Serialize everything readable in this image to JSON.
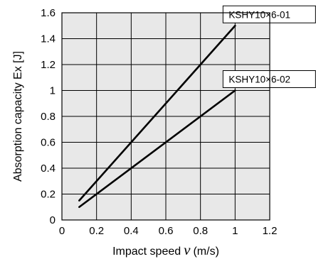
{
  "chart_data": {
    "type": "line",
    "xlabel": "Impact speed",
    "xlabel_symbol": "v",
    "xlabel_unit": "(m/s)",
    "ylabel": "Absorption capacity Ex [J]",
    "xlim": [
      0,
      1.2
    ],
    "ylim": [
      0,
      1.6
    ],
    "x_ticks": [
      "0",
      "0.2",
      "0.4",
      "0.6",
      "0.8",
      "1",
      "1.2"
    ],
    "y_ticks": [
      "0",
      "0.2",
      "0.4",
      "0.6",
      "0.8",
      "1",
      "1.2",
      "1.4",
      "1.6"
    ],
    "grid": true,
    "plot_background": "#e8e8e8",
    "line_color": "#000000",
    "series": [
      {
        "name": "KSHY10×6-01",
        "x": [
          0.1,
          1.0
        ],
        "y": [
          0.15,
          1.5
        ]
      },
      {
        "name": "KSHY10×6-02",
        "x": [
          0.1,
          1.0
        ],
        "y": [
          0.1,
          1.0
        ]
      }
    ]
  }
}
